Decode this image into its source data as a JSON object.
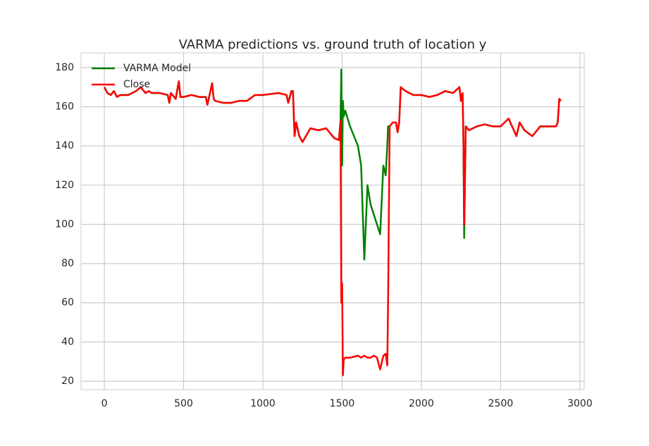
{
  "chart_data": {
    "type": "line",
    "title": "VARMA predictions vs. ground truth of location y",
    "x": [
      0,
      20,
      40,
      60,
      80,
      100,
      150,
      200,
      230,
      260,
      280,
      300,
      350,
      400,
      410,
      420,
      450,
      470,
      480,
      500,
      550,
      600,
      640,
      650,
      680,
      690,
      700,
      750,
      800,
      850,
      900,
      950,
      1000,
      1100,
      1150,
      1160,
      1180,
      1190,
      1200,
      1210,
      1230,
      1250,
      1300,
      1350,
      1400,
      1450,
      1480,
      1490,
      1495,
      1500,
      1505,
      1510,
      1520,
      1550,
      1600,
      1620,
      1640,
      1660,
      1680,
      1700,
      1720,
      1740,
      1760,
      1775,
      1785,
      1790,
      1800,
      1820,
      1840,
      1850,
      1860,
      1870,
      1900,
      1950,
      2000,
      2050,
      2100,
      2150,
      2200,
      2240,
      2250,
      2260,
      2265,
      2270,
      2280,
      2300,
      2350,
      2400,
      2450,
      2500,
      2550,
      2600,
      2620,
      2650,
      2700,
      2750,
      2800,
      2850,
      2860,
      2870,
      2880
    ],
    "series": [
      {
        "name": "VARMA Model",
        "color": "#008000",
        "values": [
          170,
          167,
          166,
          168,
          165,
          166,
          166,
          168,
          170,
          167,
          168,
          167,
          167,
          166,
          162,
          167,
          164,
          173,
          165,
          165,
          166,
          165,
          165,
          161,
          172,
          164,
          163,
          162,
          162,
          163,
          163,
          166,
          166,
          167,
          166,
          162,
          168,
          168,
          145,
          152,
          145,
          142,
          149,
          148,
          149,
          144,
          143,
          153,
          179,
          130,
          163,
          155,
          158,
          150,
          140,
          130,
          82,
          120,
          110,
          105,
          100,
          95,
          130,
          125,
          140,
          150,
          150,
          152,
          152,
          147,
          152,
          170,
          168,
          166,
          166,
          165,
          166,
          168,
          167,
          170,
          163,
          167,
          145,
          93,
          150,
          148,
          150,
          151,
          150,
          150,
          154,
          145,
          152,
          148,
          145,
          150,
          150,
          150,
          152,
          164,
          163
        ]
      },
      {
        "name": "Close",
        "color": "#ff0000",
        "values": [
          170,
          167,
          166,
          168,
          165,
          166,
          166,
          168,
          170,
          167,
          168,
          167,
          167,
          166,
          162,
          167,
          164,
          173,
          165,
          165,
          166,
          165,
          165,
          161,
          172,
          164,
          163,
          162,
          162,
          163,
          163,
          166,
          166,
          167,
          166,
          162,
          168,
          168,
          145,
          152,
          145,
          142,
          149,
          148,
          149,
          144,
          143,
          153,
          60,
          70,
          23,
          31,
          32,
          32,
          33,
          32,
          33,
          32,
          32,
          33,
          32,
          26,
          33,
          34,
          28,
          60,
          150,
          152,
          152,
          147,
          152,
          170,
          168,
          166,
          166,
          165,
          166,
          168,
          167,
          170,
          163,
          167,
          145,
          100,
          150,
          148,
          150,
          151,
          150,
          150,
          154,
          145,
          152,
          148,
          145,
          150,
          150,
          150,
          152,
          164,
          163
        ]
      }
    ],
    "xlim": [
      -147,
      3027
    ],
    "ylim": [
      15.7,
      187.5
    ],
    "xticks": [
      0,
      500,
      1000,
      1500,
      2000,
      2500,
      3000
    ],
    "yticks": [
      20,
      40,
      60,
      80,
      100,
      120,
      140,
      160,
      180
    ],
    "grid": true,
    "legend": "upper left"
  }
}
